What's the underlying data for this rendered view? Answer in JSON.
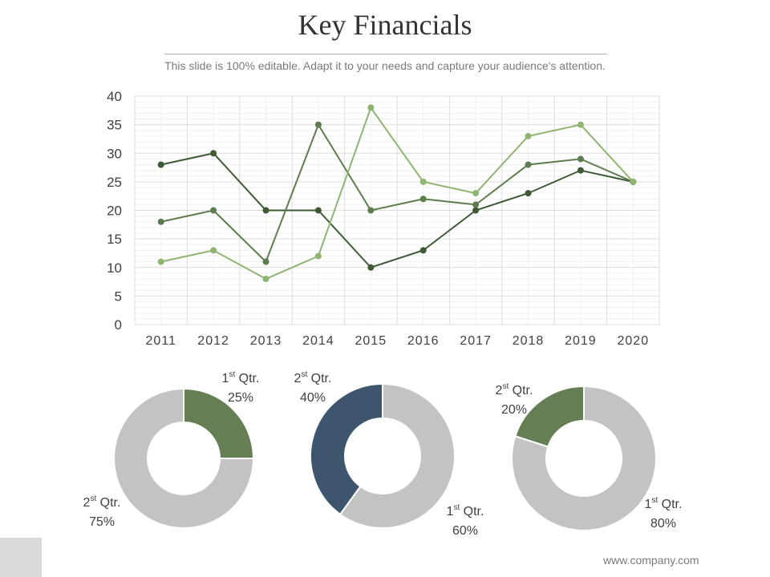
{
  "header": {
    "title": "Key Financials",
    "subtitle": "This slide is 100% editable. Adapt it to your needs and capture your audience's attention."
  },
  "footer": {
    "website": "www.company.com"
  },
  "colors": {
    "series_dark": "#3e5a35",
    "series_mid": "#5d7d4f",
    "series_light": "#8fb572",
    "pie_green": "#647f54",
    "pie_navy": "#3d566e",
    "pie_gray": "#c3c3c3",
    "grid": "#e6e6e6"
  },
  "chart_data": [
    {
      "type": "line",
      "x": [
        "2011",
        "2012",
        "2013",
        "2014",
        "2015",
        "2016",
        "2017",
        "2018",
        "2019",
        "2020"
      ],
      "ylim": [
        0,
        40
      ],
      "yticks": [
        0,
        5,
        10,
        15,
        20,
        25,
        30,
        35,
        40
      ],
      "grid": true,
      "series": [
        {
          "color": "#3e5a35",
          "values": [
            28,
            30,
            20,
            20,
            10,
            13,
            20,
            23,
            27,
            25
          ]
        },
        {
          "color": "#5d7d4f",
          "values": [
            18,
            20,
            11,
            35,
            20,
            22,
            21,
            28,
            29,
            25
          ]
        },
        {
          "color": "#8fb572",
          "values": [
            11,
            13,
            8,
            12,
            38,
            25,
            23,
            33,
            35,
            25
          ]
        }
      ]
    },
    {
      "type": "pie",
      "slices": [
        {
          "label_main": "1",
          "label_sup": "st",
          "label_rest": " Qtr.",
          "percent_label": "25%",
          "value": 25,
          "color": "#647f54"
        },
        {
          "label_main": "2",
          "label_sup": "st",
          "label_rest": " Qtr.",
          "percent_label": "75%",
          "value": 75,
          "color": "#c3c3c3"
        }
      ]
    },
    {
      "type": "pie",
      "slices": [
        {
          "label_main": "1",
          "label_sup": "st",
          "label_rest": " Qtr.",
          "percent_label": "60%",
          "value": 60,
          "color": "#c3c3c3"
        },
        {
          "label_main": "2",
          "label_sup": "st",
          "label_rest": " Qtr.",
          "percent_label": "40%",
          "value": 40,
          "color": "#3d566e"
        }
      ]
    },
    {
      "type": "pie",
      "slices": [
        {
          "label_main": "1",
          "label_sup": "st",
          "label_rest": " Qtr.",
          "percent_label": "80%",
          "value": 80,
          "color": "#c3c3c3"
        },
        {
          "label_main": "2",
          "label_sup": "st",
          "label_rest": " Qtr.",
          "percent_label": "20%",
          "value": 20,
          "color": "#647f54"
        }
      ]
    }
  ]
}
